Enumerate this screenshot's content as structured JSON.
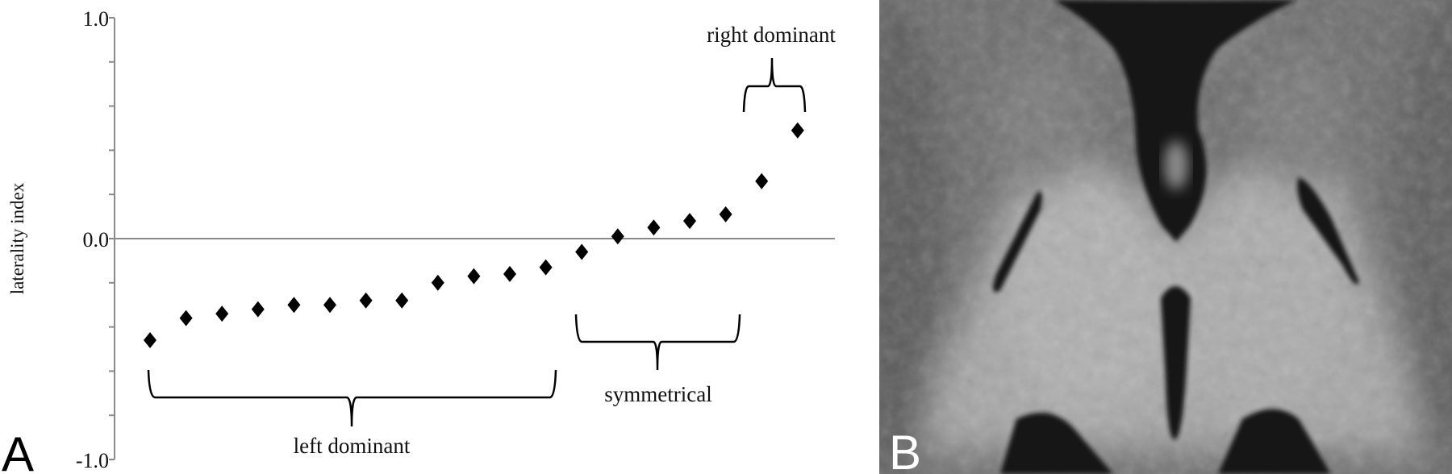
{
  "panels": {
    "a_label": "A",
    "b_label": "B"
  },
  "chart_data": {
    "type": "scatter",
    "marker": "diamond",
    "marker_color": "#000000",
    "ylabel": "laterality index",
    "xlabel": "",
    "ylim": [
      -1.0,
      1.0
    ],
    "yticks_labeled": [
      "1.0",
      "0.0",
      "-1.0"
    ],
    "ytick_values": [
      1.0,
      0.0,
      -1.0
    ],
    "minor_tick_step": 0.2,
    "zero_line": true,
    "grid": false,
    "x": [
      1,
      2,
      3,
      4,
      5,
      6,
      7,
      8,
      9,
      10,
      11,
      12,
      13,
      14,
      15,
      16,
      17,
      18,
      19
    ],
    "values": [
      -0.46,
      -0.36,
      -0.34,
      -0.32,
      -0.3,
      -0.3,
      -0.28,
      -0.28,
      -0.2,
      -0.17,
      -0.16,
      -0.13,
      -0.06,
      0.01,
      0.05,
      0.08,
      0.11,
      0.26,
      0.49
    ],
    "annotations": [
      {
        "text": "left dominant",
        "from": 1,
        "to": 12
      },
      {
        "text": "symmetrical",
        "from": 13,
        "to": 17
      },
      {
        "text": "right dominant",
        "from": 18,
        "to": 19
      }
    ]
  }
}
